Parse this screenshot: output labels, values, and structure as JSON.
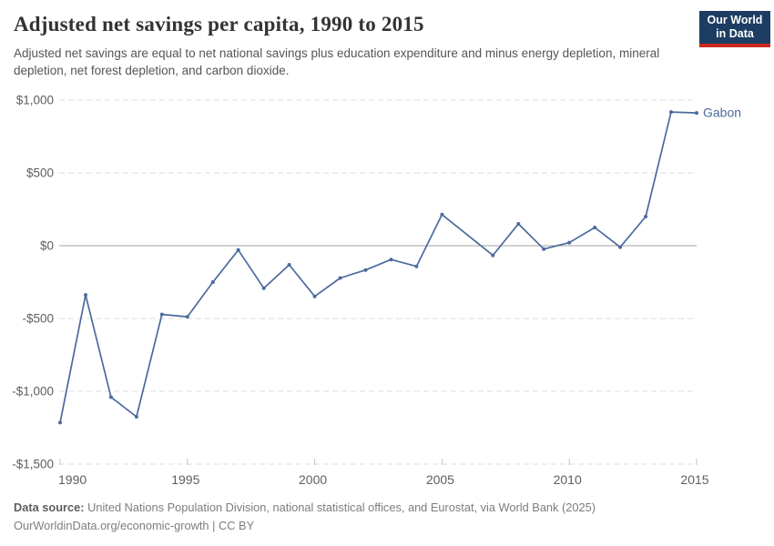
{
  "header": {
    "title": "Adjusted net savings per capita, 1990 to 2015",
    "subtitle": "Adjusted net savings are equal to net national savings plus education expenditure and minus energy depletion, mineral depletion, net forest depletion, and carbon dioxide.",
    "logo": {
      "line1": "Our World",
      "line2": "in Data",
      "bg_color": "#1d3d63",
      "stripe_color": "#cb2a1d"
    }
  },
  "chart_data": {
    "type": "line",
    "title": "Adjusted net savings per capita, 1990 to 2015",
    "xlabel": "",
    "ylabel": "",
    "xlim": [
      1990,
      2015
    ],
    "ylim": [
      -1500,
      1000
    ],
    "grid": "horizontal-dashed",
    "x": [
      1990,
      1991,
      1992,
      1993,
      1994,
      1995,
      1996,
      1997,
      1998,
      1999,
      2000,
      2001,
      2002,
      2003,
      2004,
      2005,
      2007,
      2008,
      2009,
      2010,
      2011,
      2012,
      2013,
      2014,
      2015
    ],
    "series": [
      {
        "name": "Gabon",
        "color": "#4c6a9c",
        "values": [
          -1215,
          -338,
          -1040,
          -1175,
          -472,
          -488,
          -250,
          -30,
          -292,
          -131,
          -348,
          -222,
          -167,
          -95,
          -142,
          214,
          -66,
          150,
          -23,
          21,
          125,
          -10,
          200,
          918,
          912
        ]
      }
    ],
    "end_label": "Gabon",
    "x_ticks": [
      {
        "value": 1990,
        "label": "1990"
      },
      {
        "value": 1995,
        "label": "1995"
      },
      {
        "value": 2000,
        "label": "2000"
      },
      {
        "value": 2005,
        "label": "2005"
      },
      {
        "value": 2010,
        "label": "2010"
      },
      {
        "value": 2015,
        "label": "2015"
      }
    ],
    "y_ticks": [
      {
        "value": 1000,
        "label": "$1,000"
      },
      {
        "value": 500,
        "label": "$500"
      },
      {
        "value": 0,
        "label": "$0"
      },
      {
        "value": -500,
        "label": "-$500"
      },
      {
        "value": -1000,
        "label": "-$1,000"
      },
      {
        "value": -1500,
        "label": "-$1,500"
      }
    ],
    "grid_color": "#dcdcdc",
    "zero_line_color": "#a3a3a3",
    "tick_mark_color": "#c4c4c4",
    "legend_position": "end-of-line"
  },
  "footer": {
    "data_source_label": "Data source:",
    "data_source_text": " United Nations Population Division, national statistical offices, and Eurostat, via World Bank (2025)",
    "note": "OurWorldinData.org/economic-growth | CC BY"
  }
}
